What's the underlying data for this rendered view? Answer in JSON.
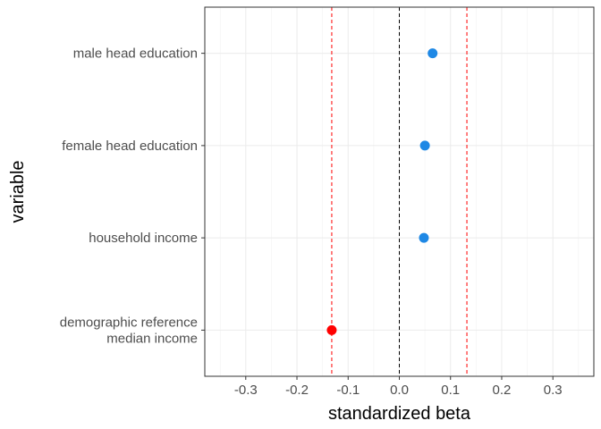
{
  "chart_data": {
    "type": "scatter",
    "title": "",
    "xlabel": "standardized beta",
    "ylabel": "variable",
    "xlim": [
      -0.38,
      0.38
    ],
    "x_ticks": [
      -0.3,
      -0.2,
      -0.1,
      0.0,
      0.1,
      0.2,
      0.3
    ],
    "x_tick_labels": [
      "-0.3",
      "-0.2",
      "-0.1",
      "0.0",
      "0.1",
      "0.2",
      "0.3"
    ],
    "categories": [
      [
        "male head education"
      ],
      [
        "female head education"
      ],
      [
        "household income"
      ],
      [
        "demographic reference",
        "median income"
      ]
    ],
    "points": [
      {
        "category": 0,
        "x": 0.065,
        "color": "#1e88e5"
      },
      {
        "category": 1,
        "x": 0.05,
        "color": "#1e88e5"
      },
      {
        "category": 2,
        "x": 0.048,
        "color": "#1e88e5"
      },
      {
        "category": 3,
        "x": -0.132,
        "color": "#ff0000"
      }
    ],
    "reference_lines": [
      {
        "x": 0.0,
        "color": "#000000",
        "style": "dashed"
      },
      {
        "x": -0.132,
        "color": "#ff0000",
        "style": "dashed"
      },
      {
        "x": 0.132,
        "color": "#ff0000",
        "style": "dashed"
      }
    ],
    "grid": true,
    "legend": "none",
    "colors": {
      "positive": "#1e88e5",
      "negative": "#ff0000"
    }
  }
}
